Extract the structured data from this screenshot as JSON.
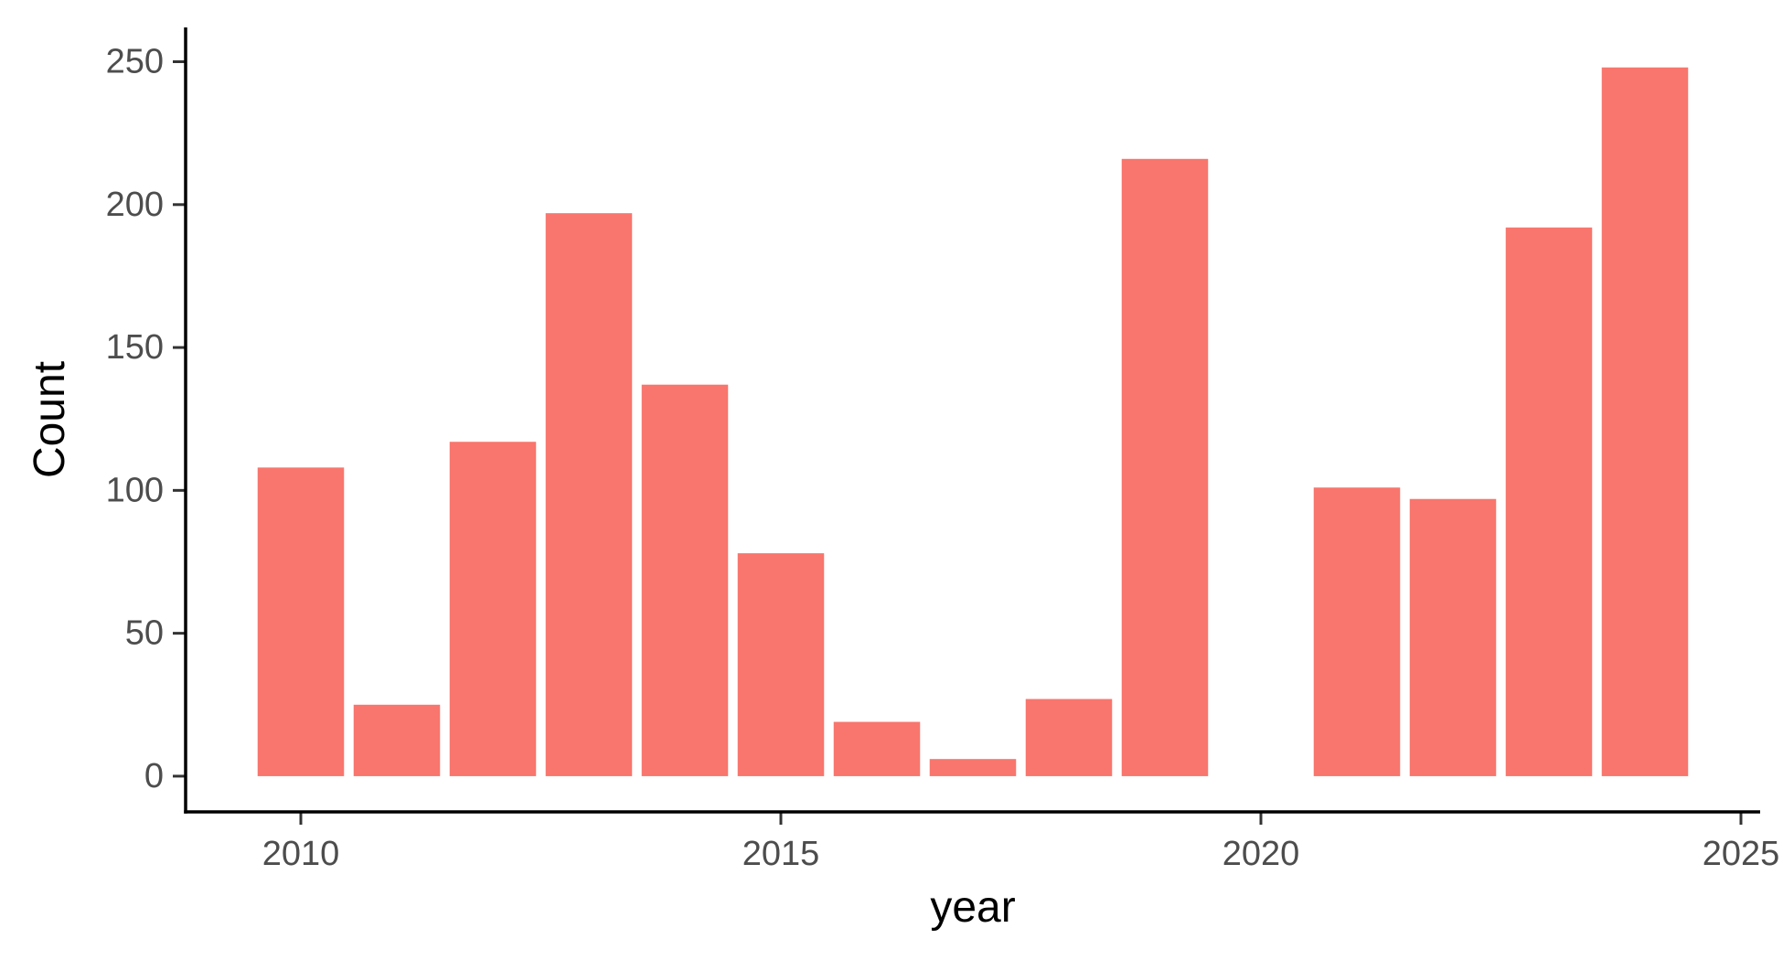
{
  "chart_data": {
    "type": "bar",
    "xlabel": "year",
    "ylabel": "Count",
    "x": [
      2010,
      2011,
      2012,
      2013,
      2014,
      2015,
      2016,
      2017,
      2018,
      2019,
      2020,
      2021,
      2022,
      2023,
      2024
    ],
    "values": [
      108,
      25,
      117,
      197,
      137,
      78,
      19,
      6,
      27,
      216,
      0,
      101,
      97,
      192,
      248
    ],
    "xlim": [
      2008.8,
      2025.2
    ],
    "ylim": [
      -12.5,
      262
    ],
    "xticks": [
      2010,
      2015,
      2020,
      2025
    ],
    "yticks": [
      0,
      50,
      100,
      150,
      200,
      250
    ],
    "bar_color": "#F8766D",
    "grid": false,
    "legend": "none"
  }
}
